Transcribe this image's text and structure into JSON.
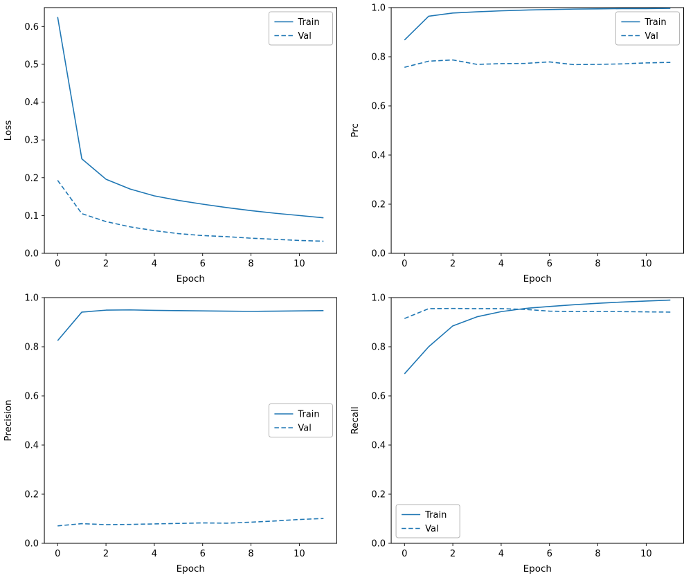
{
  "figure": {
    "background": "#ffffff",
    "line_color": "#1f77b4",
    "axis_color": "#000000",
    "legend_border_color": "#b4b4b4",
    "legend_labels": [
      "Train",
      "Val"
    ]
  },
  "chart_data": [
    {
      "type": "line",
      "title": "",
      "xlabel": "Epoch",
      "ylabel": "Loss",
      "xlim": [
        -0.55,
        11.55
      ],
      "ylim": [
        0,
        0.65
      ],
      "xticks": [
        0,
        2,
        4,
        6,
        8,
        10
      ],
      "yticks": [
        0.0,
        0.1,
        0.2,
        0.3,
        0.4,
        0.5,
        0.6
      ],
      "grid": false,
      "legend_position": "upper-right",
      "x": [
        0,
        1,
        2,
        3,
        4,
        5,
        6,
        7,
        8,
        9,
        10,
        11
      ],
      "series": [
        {
          "name": "Train",
          "style": "solid",
          "values": [
            0.625,
            0.25,
            0.196,
            0.17,
            0.152,
            0.14,
            0.13,
            0.121,
            0.113,
            0.106,
            0.1,
            0.094
          ]
        },
        {
          "name": "Val",
          "style": "dashed",
          "values": [
            0.193,
            0.105,
            0.084,
            0.07,
            0.06,
            0.052,
            0.047,
            0.044,
            0.04,
            0.037,
            0.034,
            0.032
          ]
        }
      ]
    },
    {
      "type": "line",
      "title": "",
      "xlabel": "Epoch",
      "ylabel": "Prc",
      "xlim": [
        -0.55,
        11.55
      ],
      "ylim": [
        0,
        1.0
      ],
      "xticks": [
        0,
        2,
        4,
        6,
        8,
        10
      ],
      "yticks": [
        0.0,
        0.2,
        0.4,
        0.6,
        0.8,
        1.0
      ],
      "grid": false,
      "legend_position": "upper-right",
      "x": [
        0,
        1,
        2,
        3,
        4,
        5,
        6,
        7,
        8,
        9,
        10,
        11
      ],
      "series": [
        {
          "name": "Train",
          "style": "solid",
          "values": [
            0.868,
            0.965,
            0.978,
            0.983,
            0.987,
            0.99,
            0.992,
            0.994,
            0.995,
            0.996,
            0.996,
            0.997
          ]
        },
        {
          "name": "Val",
          "style": "dashed",
          "values": [
            0.757,
            0.782,
            0.787,
            0.769,
            0.772,
            0.773,
            0.779,
            0.768,
            0.769,
            0.771,
            0.775,
            0.777
          ]
        }
      ]
    },
    {
      "type": "line",
      "title": "",
      "xlabel": "Epoch",
      "ylabel": "Precision",
      "xlim": [
        -0.55,
        11.55
      ],
      "ylim": [
        0,
        1.0
      ],
      "xticks": [
        0,
        2,
        4,
        6,
        8,
        10
      ],
      "yticks": [
        0.0,
        0.2,
        0.4,
        0.6,
        0.8,
        1.0
      ],
      "grid": false,
      "legend_position": "center-right",
      "x": [
        0,
        1,
        2,
        3,
        4,
        5,
        6,
        7,
        8,
        9,
        10,
        11
      ],
      "series": [
        {
          "name": "Train",
          "style": "solid",
          "values": [
            0.825,
            0.941,
            0.949,
            0.95,
            0.948,
            0.947,
            0.946,
            0.945,
            0.944,
            0.945,
            0.946,
            0.947
          ]
        },
        {
          "name": "Val",
          "style": "dashed",
          "values": [
            0.071,
            0.08,
            0.076,
            0.077,
            0.079,
            0.081,
            0.083,
            0.082,
            0.086,
            0.091,
            0.097,
            0.101
          ]
        }
      ]
    },
    {
      "type": "line",
      "title": "",
      "xlabel": "Epoch",
      "ylabel": "Recall",
      "xlim": [
        -0.55,
        11.55
      ],
      "ylim": [
        0,
        1.0
      ],
      "xticks": [
        0,
        2,
        4,
        6,
        8,
        10
      ],
      "yticks": [
        0.0,
        0.2,
        0.4,
        0.6,
        0.8,
        1.0
      ],
      "grid": false,
      "legend_position": "lower-left",
      "x": [
        0,
        1,
        2,
        3,
        4,
        5,
        6,
        7,
        8,
        9,
        10,
        11
      ],
      "series": [
        {
          "name": "Train",
          "style": "solid",
          "values": [
            0.69,
            0.8,
            0.885,
            0.922,
            0.943,
            0.956,
            0.964,
            0.971,
            0.977,
            0.982,
            0.986,
            0.99
          ]
        },
        {
          "name": "Val",
          "style": "dashed",
          "values": [
            0.915,
            0.955,
            0.956,
            0.955,
            0.955,
            0.952,
            0.945,
            0.943,
            0.943,
            0.943,
            0.942,
            0.941
          ]
        }
      ]
    }
  ]
}
